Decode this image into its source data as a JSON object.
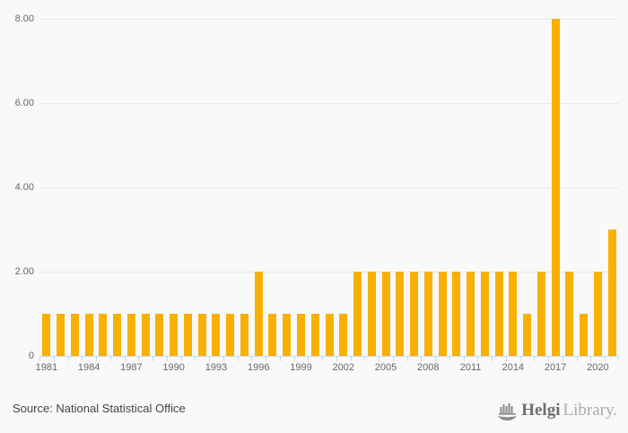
{
  "chart_data": {
    "type": "bar",
    "categories": [
      "1981",
      "1982",
      "1983",
      "1984",
      "1985",
      "1986",
      "1987",
      "1988",
      "1989",
      "1990",
      "1991",
      "1992",
      "1993",
      "1994",
      "1995",
      "1996",
      "1997",
      "1998",
      "1999",
      "2000",
      "2001",
      "2002",
      "2003",
      "2004",
      "2005",
      "2006",
      "2007",
      "2008",
      "2009",
      "2010",
      "2011",
      "2012",
      "2013",
      "2014",
      "2015",
      "2016",
      "2017",
      "2018",
      "2019",
      "2020",
      "2021"
    ],
    "values": [
      1,
      1,
      1,
      1,
      1,
      1,
      1,
      1,
      1,
      1,
      1,
      1,
      1,
      1,
      1,
      2,
      1,
      1,
      1,
      1,
      1,
      1,
      2,
      2,
      2,
      2,
      2,
      2,
      2,
      2,
      2,
      2,
      2,
      2,
      1,
      2,
      8,
      2,
      1,
      2,
      3
    ],
    "xlabel": "",
    "ylabel": "",
    "ylim": [
      0,
      8
    ],
    "y_ticks": [
      {
        "value": 8,
        "label": "8.00"
      },
      {
        "value": 6,
        "label": "6.00"
      },
      {
        "value": 4,
        "label": "4.00"
      },
      {
        "value": 2,
        "label": "2.00"
      },
      {
        "value": 0,
        "label": "0"
      }
    ],
    "x_label_every": 3,
    "grid": true,
    "legend": false
  },
  "colors": {
    "background": "#f9f9f9",
    "bar": "#f9b005",
    "gridline": "#e8e8e8",
    "axis_line": "#ccd6eb",
    "axis_label": "#666666",
    "source_text": "#444444",
    "logo_bold": "#6e6e6e",
    "logo_light": "#ababab",
    "logo_icon": "#8a8a8a"
  },
  "footer": {
    "source": "Source: National Statistical Office",
    "logo": {
      "name_bold": "Helgi",
      "name_light": "Library."
    }
  }
}
